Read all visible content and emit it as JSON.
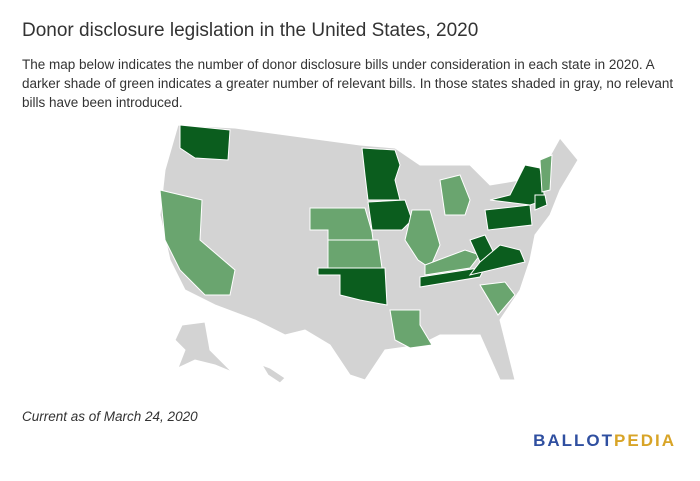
{
  "header": {
    "title": "Donor disclosure legislation in the United States, 2020",
    "description": "The map below indicates the number of donor disclosure bills under consideration in each state in 2020. A darker shade of green indicates a greater number of relevant bills. In those states shaded in gray, no relevant bills have been introduced."
  },
  "footer": {
    "note": "Current as of March 24, 2020",
    "logo": [
      "BALLOT",
      "PEDIA"
    ]
  }
}
